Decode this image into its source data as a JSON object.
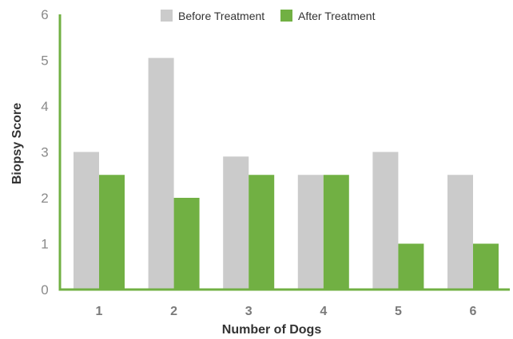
{
  "chart_data": {
    "type": "bar",
    "title": "",
    "xlabel": "Number of Dogs",
    "ylabel": "Biopsy Score",
    "categories": [
      "1",
      "2",
      "3",
      "4",
      "5",
      "6"
    ],
    "ylim": [
      0,
      6
    ],
    "yticks": [
      "0",
      "1",
      "2",
      "3",
      "4",
      "5",
      "6"
    ],
    "grid": false,
    "legend": "top-center",
    "series": [
      {
        "name": "Before Treatment",
        "color": "#cbcbcb",
        "values": [
          3.0,
          5.05,
          2.9,
          2.5,
          3.0,
          2.5
        ]
      },
      {
        "name": "After Treatment",
        "color": "#71b043",
        "values": [
          2.5,
          2.0,
          2.5,
          2.5,
          1.0,
          1.0
        ]
      }
    ],
    "axis_color": "#71b043"
  }
}
